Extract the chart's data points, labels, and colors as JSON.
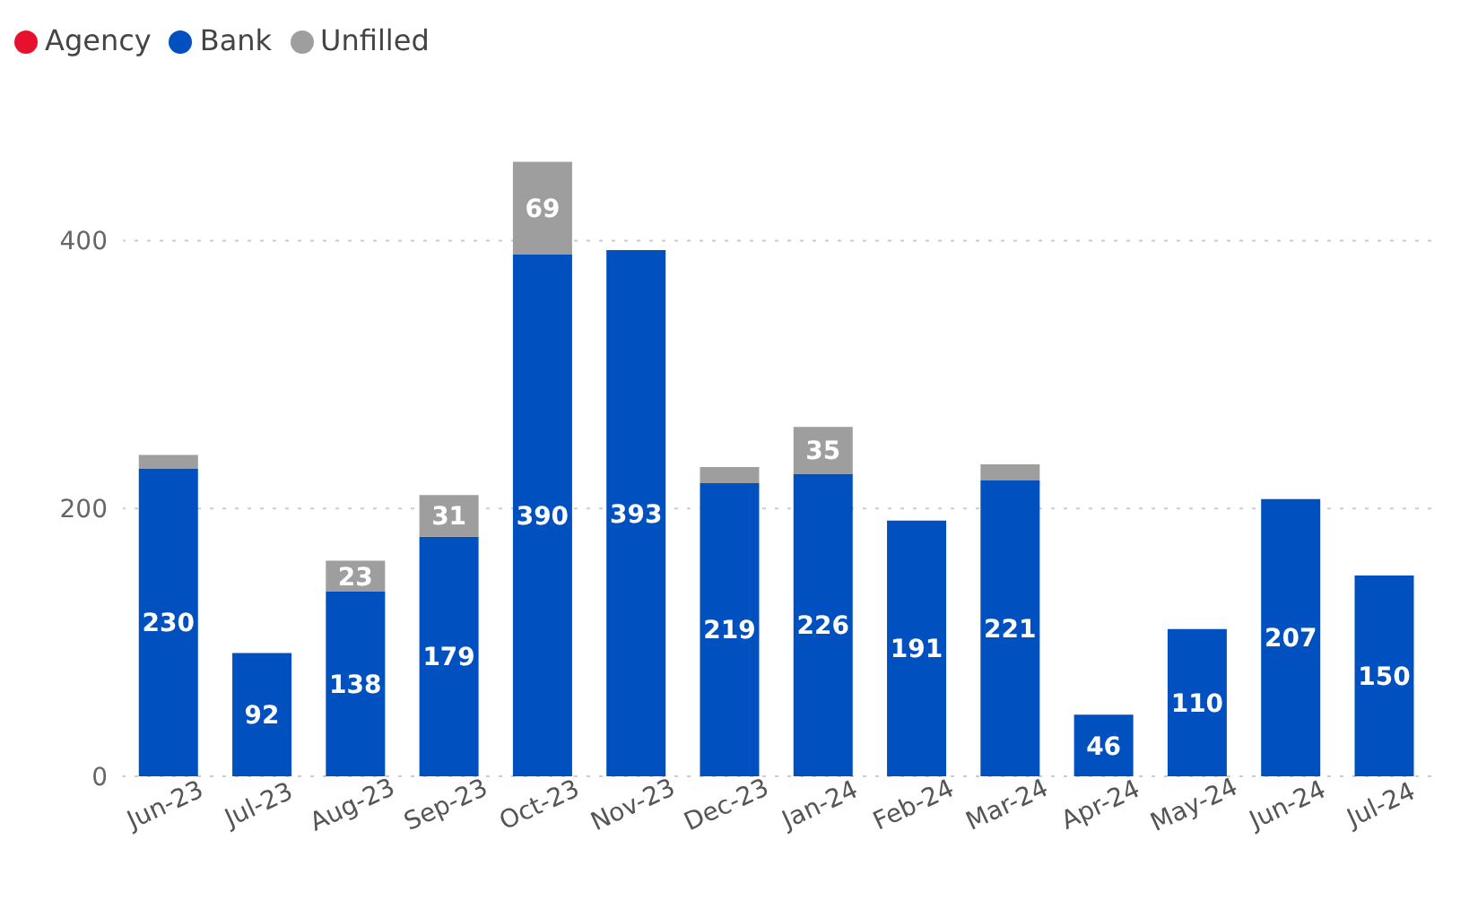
{
  "chart_data": {
    "type": "bar",
    "stacked": true,
    "categories": [
      "Jun-23",
      "Jul-23",
      "Aug-23",
      "Sep-23",
      "Oct-23",
      "Nov-23",
      "Dec-23",
      "Jan-24",
      "Feb-24",
      "Mar-24",
      "Apr-24",
      "May-24",
      "Jun-24",
      "Jul-24"
    ],
    "series": [
      {
        "name": "Agency",
        "color": "#e8112d",
        "values": [
          null,
          null,
          null,
          null,
          null,
          null,
          null,
          null,
          null,
          null,
          null,
          null,
          null,
          null
        ]
      },
      {
        "name": "Bank",
        "color": "#0050c0",
        "values": [
          230,
          92,
          138,
          179,
          390,
          393,
          219,
          226,
          191,
          221,
          46,
          110,
          207,
          150
        ],
        "value_labels": [
          "230",
          "92",
          "138",
          "179",
          "390",
          "393",
          "219",
          "226",
          "191",
          "221",
          "46",
          "110",
          "207",
          "150"
        ]
      },
      {
        "name": "Unfilled",
        "color": "#9e9e9e",
        "values": [
          10,
          null,
          23,
          31,
          69,
          null,
          12,
          35,
          null,
          12,
          null,
          null,
          null,
          null
        ],
        "value_labels": [
          null,
          null,
          "23",
          "31",
          "69",
          null,
          null,
          "35",
          null,
          null,
          null,
          null,
          null,
          null
        ]
      }
    ],
    "ylim": [
      0,
      470
    ],
    "yticks": [
      0,
      200,
      400
    ],
    "grid": "y",
    "legend": "top left"
  }
}
